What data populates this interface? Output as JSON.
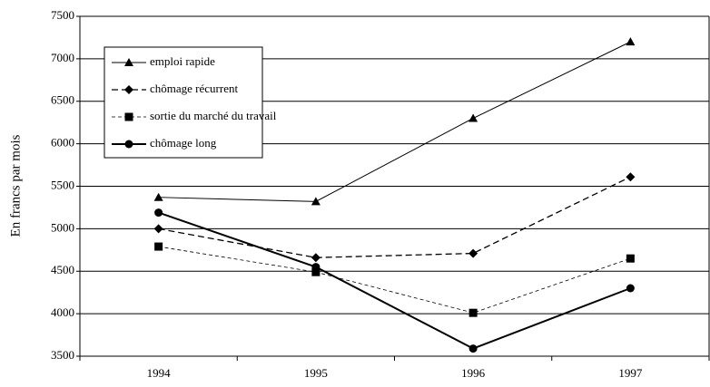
{
  "chart_data": {
    "type": "line",
    "ylabel": "En francs par mois",
    "categories": [
      "1994",
      "1995",
      "1996",
      "1997"
    ],
    "series": [
      {
        "name": "emploi rapide",
        "color": "#000000",
        "marker": "triangle",
        "values": [
          5370,
          5320,
          6300,
          7200
        ]
      },
      {
        "name": "chômage récurrent",
        "color": "#000000",
        "marker": "diamond",
        "values": [
          5000,
          4660,
          4710,
          5610
        ]
      },
      {
        "name": "sortie du marché du travail",
        "color": "#000000",
        "marker": "square",
        "values": [
          4790,
          4490,
          4010,
          4650
        ]
      },
      {
        "name": "chômage long",
        "color": "#000000",
        "marker": "circle",
        "values": [
          5190,
          4550,
          3590,
          4300
        ]
      }
    ],
    "ylim": [
      3500,
      7500
    ],
    "yticks": [
      3500,
      4000,
      4500,
      5000,
      5500,
      6000,
      6500,
      7000,
      7500
    ],
    "grid": true,
    "legend": "upper left"
  }
}
